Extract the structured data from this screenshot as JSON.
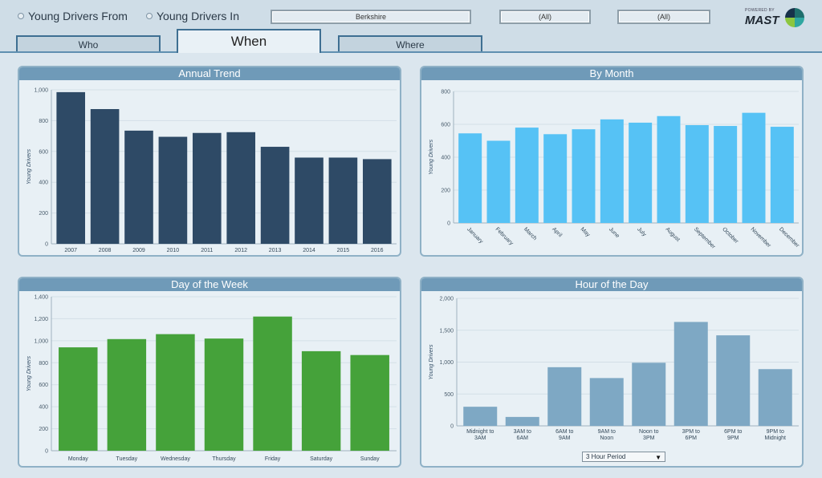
{
  "header": {
    "radio_from": "Young Drivers From",
    "radio_in": "Young Drivers In",
    "filter_region": "Berkshire",
    "filter_2": "(All)",
    "filter_3": "(All)",
    "logo_sub": "POWERED BY",
    "logo_text": "MAST"
  },
  "tabs": {
    "who": "Who",
    "when": "When",
    "where": "Where"
  },
  "colors": {
    "annual": "#2e4a66",
    "month": "#56c2f5",
    "week": "#45a23a",
    "hour": "#7ea8c4"
  },
  "period_select": "3 Hour Period",
  "chart_data": [
    {
      "type": "bar",
      "title": "Annual Trend",
      "ylabel": "Young Drivers",
      "categories": [
        "2007",
        "2008",
        "2009",
        "2010",
        "2011",
        "2012",
        "2013",
        "2014",
        "2015",
        "2016"
      ],
      "values": [
        985,
        875,
        735,
        695,
        720,
        725,
        630,
        560,
        560,
        550
      ],
      "ylim": [
        0,
        1000
      ],
      "yticks": [
        0,
        200,
        400,
        600,
        800,
        1000
      ],
      "ytick_labels": [
        "0",
        "200",
        "400",
        "600",
        "800",
        "1,000"
      ]
    },
    {
      "type": "bar",
      "title": "By Month",
      "ylabel": "Young Drivers",
      "categories": [
        "January",
        "February",
        "March",
        "April",
        "May",
        "June",
        "July",
        "August",
        "September",
        "October",
        "November",
        "December"
      ],
      "values": [
        545,
        500,
        580,
        540,
        570,
        630,
        610,
        650,
        595,
        590,
        670,
        585
      ],
      "ylim": [
        0,
        800
      ],
      "yticks": [
        0,
        200,
        400,
        600,
        800
      ],
      "ytick_labels": [
        "0",
        "200",
        "400",
        "600",
        "800"
      ]
    },
    {
      "type": "bar",
      "title": "Day of the Week",
      "ylabel": "Young Drivers",
      "categories": [
        "Monday",
        "Tuesday",
        "Wednesday",
        "Thursday",
        "Friday",
        "Saturday",
        "Sunday"
      ],
      "values": [
        940,
        1015,
        1060,
        1020,
        1220,
        905,
        870
      ],
      "ylim": [
        0,
        1400
      ],
      "yticks": [
        0,
        200,
        400,
        600,
        800,
        1000,
        1200,
        1400
      ],
      "ytick_labels": [
        "0",
        "200",
        "400",
        "600",
        "800",
        "1,000",
        "1,200",
        "1,400"
      ]
    },
    {
      "type": "bar",
      "title": "Hour of the Day",
      "ylabel": "Young Drivers",
      "categories": [
        "Midnight to 3AM",
        "3AM to 6AM",
        "6AM to 9AM",
        "9AM to Noon",
        "Noon to 3PM",
        "3PM to 6PM",
        "6PM to 9PM",
        "9PM to Midnight"
      ],
      "category_lines": [
        [
          "Midnight to",
          "3AM"
        ],
        [
          "3AM to",
          "6AM"
        ],
        [
          "6AM to",
          "9AM"
        ],
        [
          "9AM to",
          "Noon"
        ],
        [
          "Noon to",
          "3PM"
        ],
        [
          "3PM to",
          "6PM"
        ],
        [
          "6PM to",
          "9PM"
        ],
        [
          "9PM to",
          "Midnight"
        ]
      ],
      "values": [
        300,
        140,
        920,
        750,
        990,
        1630,
        1420,
        890
      ],
      "ylim": [
        0,
        2000
      ],
      "yticks": [
        0,
        500,
        1000,
        1500,
        2000
      ],
      "ytick_labels": [
        "0",
        "500",
        "1,000",
        "1,500",
        "2,000"
      ]
    }
  ]
}
